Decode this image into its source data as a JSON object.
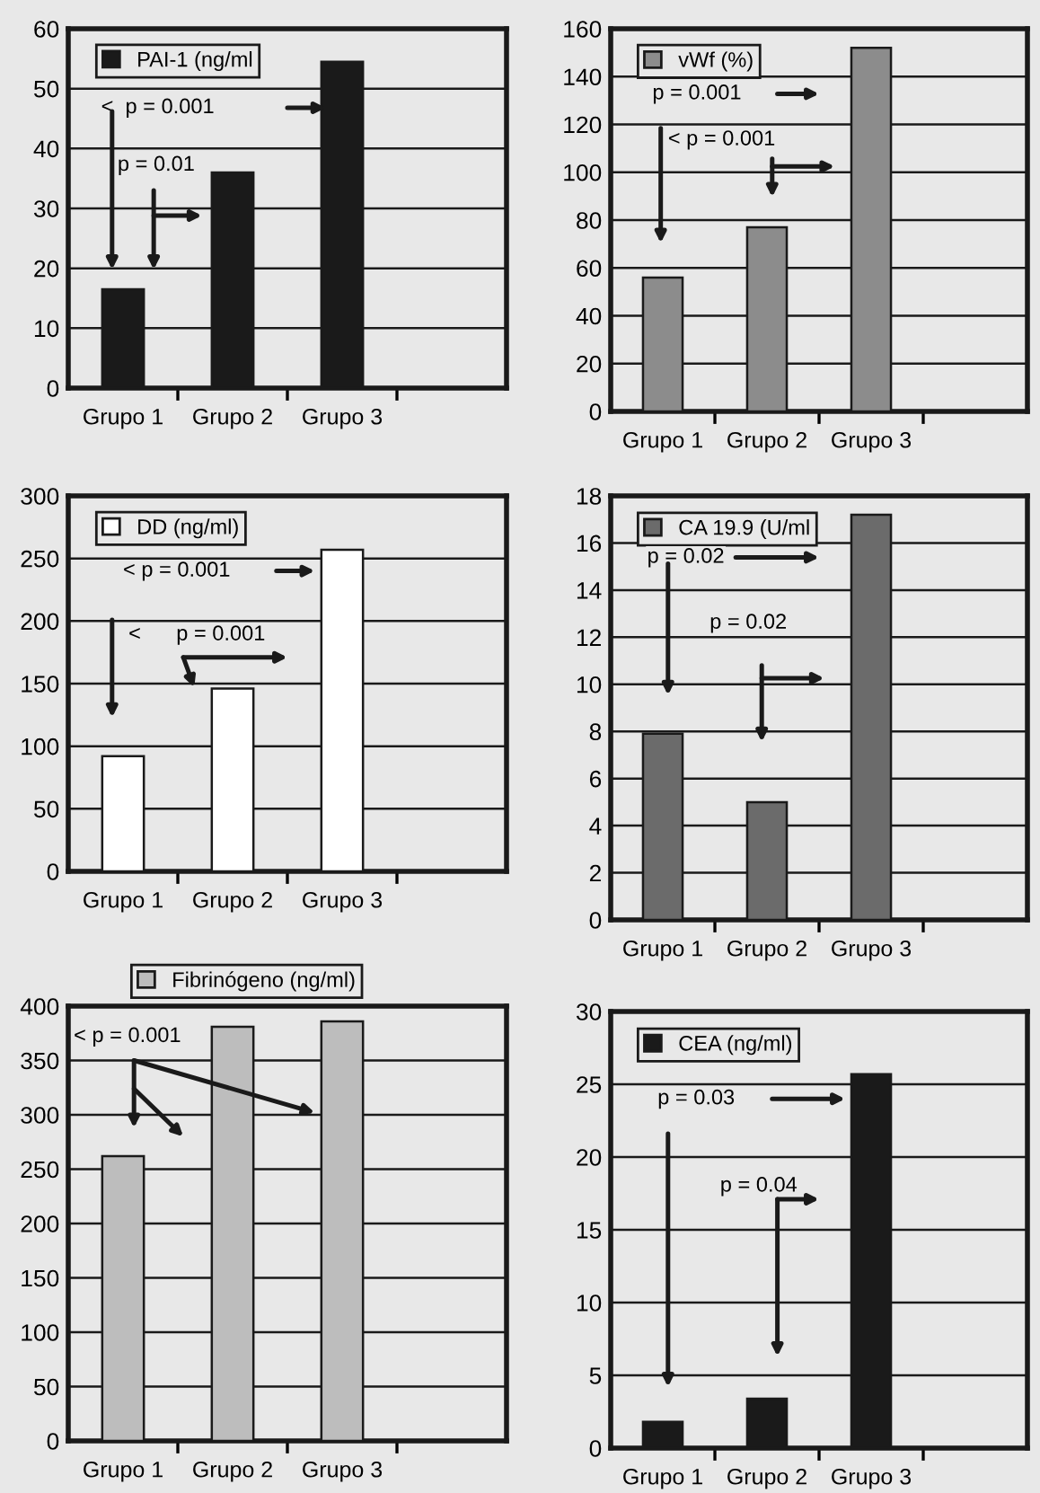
{
  "chart_data": [
    {
      "type": "bar",
      "categories": [
        "Grupo 1",
        "Grupo 2",
        "Grupo 3",
        null
      ],
      "series": [
        {
          "name": "PAI-1 (ng/ml",
          "color": "#1a1a1a",
          "values": [
            16.5,
            36,
            54.5,
            null
          ]
        }
      ],
      "ylim": [
        0,
        60
      ],
      "yticks": [
        0,
        10,
        20,
        30,
        40,
        50,
        60
      ],
      "grid": "y",
      "legend": "top left",
      "annotations": [
        "<  p = 0.001",
        "p = 0.01"
      ]
    },
    {
      "type": "bar",
      "categories": [
        "Grupo 1",
        "Grupo 2",
        "Grupo 3",
        null
      ],
      "series": [
        {
          "name": "vWf (%)",
          "color": "#8c8c8c",
          "values": [
            56,
            77,
            152,
            null
          ]
        }
      ],
      "ylim": [
        0,
        160
      ],
      "yticks": [
        0,
        20,
        40,
        60,
        80,
        100,
        120,
        140,
        160
      ],
      "grid": "y",
      "legend": "top left",
      "annotations": [
        "p = 0.001",
        "< p = 0.001"
      ]
    },
    {
      "type": "bar",
      "categories": [
        "Grupo 1",
        "Grupo 2",
        "Grupo 3",
        null
      ],
      "series": [
        {
          "name": "DD (ng/ml)",
          "color": "#ffffff",
          "values": [
            92,
            146,
            257,
            null
          ]
        }
      ],
      "ylim": [
        0,
        300
      ],
      "yticks": [
        0,
        50,
        100,
        150,
        200,
        250,
        300
      ],
      "grid": "y",
      "legend": "top left",
      "annotations": [
        "< p = 0.001",
        "<      p = 0.001"
      ]
    },
    {
      "type": "bar",
      "categories": [
        "Grupo 1",
        "Grupo 2",
        "Grupo 3",
        null
      ],
      "series": [
        {
          "name": "CA 19.9 (U/ml",
          "color": "#6b6b6b",
          "values": [
            7.9,
            5,
            17.2,
            null
          ]
        }
      ],
      "ylim": [
        0,
        18
      ],
      "yticks": [
        0,
        2,
        4,
        6,
        8,
        10,
        12,
        14,
        16,
        18
      ],
      "grid": "y",
      "legend": "top left",
      "annotations": [
        "p = 0.02",
        "p = 0.02"
      ]
    },
    {
      "type": "bar",
      "categories": [
        "Grupo 1",
        "Grupo 2",
        "Grupo 3",
        null
      ],
      "series": [
        {
          "name": "Fibrinógeno (ng/ml)",
          "color": "#bdbdbd",
          "values": [
            262,
            381,
            386,
            null
          ]
        }
      ],
      "ylim": [
        0,
        400
      ],
      "yticks": [
        0,
        50,
        100,
        150,
        200,
        250,
        300,
        350,
        400
      ],
      "grid": "y",
      "legend": "top",
      "annotations": [
        "< p = 0.001"
      ]
    },
    {
      "type": "bar",
      "categories": [
        "Grupo 1",
        "Grupo 2",
        "Grupo 3",
        null
      ],
      "series": [
        {
          "name": "CEA (ng/ml)",
          "color": "#1a1a1a",
          "values": [
            1.8,
            3.4,
            25.7,
            null
          ]
        }
      ],
      "ylim": [
        0,
        30
      ],
      "yticks": [
        0,
        5,
        10,
        15,
        20,
        25,
        30
      ],
      "grid": "y",
      "legend": "top left",
      "annotations": [
        "p = 0.03",
        "p = 0.04"
      ]
    }
  ]
}
